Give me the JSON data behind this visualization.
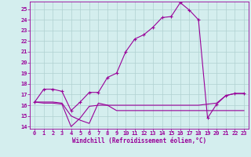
{
  "xlabel": "Windchill (Refroidissement éolien,°C)",
  "xlim": [
    -0.5,
    23.5
  ],
  "ylim": [
    13.8,
    25.7
  ],
  "xticks": [
    0,
    1,
    2,
    3,
    4,
    5,
    6,
    7,
    8,
    9,
    10,
    11,
    12,
    13,
    14,
    15,
    16,
    17,
    18,
    19,
    20,
    21,
    22,
    23
  ],
  "yticks": [
    14,
    15,
    16,
    17,
    18,
    19,
    20,
    21,
    22,
    23,
    24,
    25
  ],
  "line_color": "#990099",
  "bg_color": "#d4eeee",
  "grid_color": "#b0d0d0",
  "series": [
    {
      "x": [
        0,
        1,
        2,
        3,
        4,
        5,
        6,
        7,
        8,
        9,
        10,
        11,
        12,
        13,
        14,
        15,
        16,
        17,
        18,
        19,
        20,
        21,
        22,
        23
      ],
      "y": [
        16.3,
        17.5,
        17.5,
        17.3,
        15.5,
        16.3,
        17.2,
        17.2,
        18.6,
        19.0,
        21.0,
        22.2,
        22.6,
        23.3,
        24.2,
        24.3,
        25.6,
        24.9,
        24.0,
        14.8,
        16.1,
        16.9,
        17.1,
        17.1
      ],
      "marker": true
    },
    {
      "x": [
        0,
        1,
        2,
        3,
        4,
        5,
        6,
        7,
        8,
        9,
        10,
        11,
        12,
        13,
        14,
        15,
        16,
        17,
        18,
        19,
        20,
        21,
        22,
        23
      ],
      "y": [
        16.3,
        16.2,
        16.2,
        16.1,
        14.0,
        14.8,
        15.9,
        16.0,
        16.0,
        16.0,
        16.0,
        16.0,
        16.0,
        16.0,
        16.0,
        16.0,
        16.0,
        16.0,
        16.0,
        16.1,
        16.2,
        16.9,
        17.1,
        17.1
      ],
      "marker": false
    },
    {
      "x": [
        0,
        1,
        2,
        3,
        4,
        5,
        6,
        7,
        8,
        9,
        10,
        11,
        12,
        13,
        14,
        15,
        16,
        17,
        18,
        19,
        20,
        21,
        22,
        23
      ],
      "y": [
        16.3,
        16.3,
        16.3,
        16.2,
        15.0,
        14.6,
        14.3,
        16.2,
        16.0,
        15.5,
        15.5,
        15.5,
        15.5,
        15.5,
        15.5,
        15.5,
        15.5,
        15.5,
        15.5,
        15.5,
        15.5,
        15.5,
        15.5,
        15.5
      ],
      "marker": false
    }
  ]
}
